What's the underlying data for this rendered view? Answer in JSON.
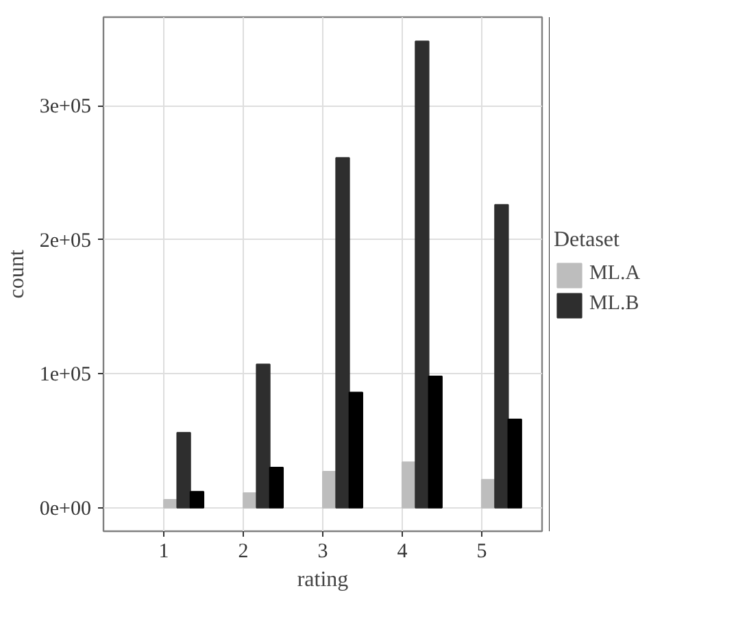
{
  "chart_data": {
    "type": "bar",
    "xlabel": "rating",
    "ylabel": "count",
    "legend_title": "Detaset",
    "legend": "right",
    "grid": true,
    "x": [
      1,
      2,
      3,
      4,
      5
    ],
    "xlim": [
      0.24,
      5.76
    ],
    "xticks": [
      1,
      2,
      3,
      4,
      5
    ],
    "ylim": [
      -17500,
      366000
    ],
    "yticks": [
      {
        "value": 0,
        "label": "0e+00"
      },
      {
        "value": 100000,
        "label": "1e+05"
      },
      {
        "value": 200000,
        "label": "2e+05"
      },
      {
        "value": 300000,
        "label": "3e+05"
      }
    ],
    "series": [
      {
        "name": "ML.A",
        "color": "#bdbdbd",
        "values": [
          6000,
          11000,
          27000,
          34000,
          21000
        ]
      },
      {
        "name": "ML.B",
        "color": "#2e2e2e",
        "values": [
          56000,
          107000,
          261000,
          348000,
          226000
        ]
      },
      {
        "color": "#000000",
        "values": [
          12000,
          30000,
          86000,
          98000,
          66000
        ]
      }
    ]
  }
}
